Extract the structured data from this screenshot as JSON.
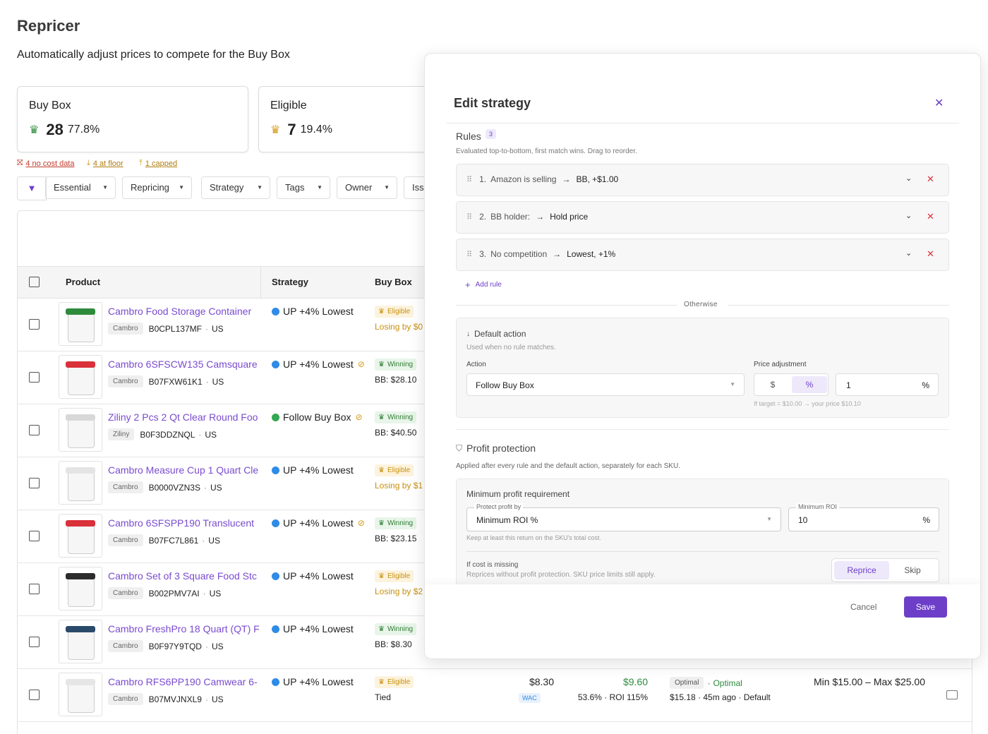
{
  "header": {
    "title": "Repricer",
    "subtitle": "Automatically adjust prices to compete for the Buy Box"
  },
  "stats": [
    {
      "label": "Buy Box",
      "count": "28",
      "pct": "77.8%"
    },
    {
      "label": "Eligible",
      "count": "7",
      "pct": "19.4%"
    }
  ],
  "alerts": [
    "4 no cost data",
    "4 at floor",
    "1 capped"
  ],
  "filters": [
    "Essential",
    "Repricing",
    "Strategy",
    "Tags",
    "Owner",
    "Iss"
  ],
  "table": {
    "columns": [
      "Product",
      "Strategy",
      "Buy Box"
    ],
    "rows": [
      {
        "name": "Cambro Food Storage Container",
        "brand": "Cambro",
        "asin": "B0CPL137MF",
        "market": "US",
        "strategy": "UP +4% Lowest",
        "strategy_color": "#2f8be6",
        "verified": false,
        "badge": "Eligible",
        "buybox": "Losing by $0"
      },
      {
        "name": "Cambro 6SFSCW135 Camsquare",
        "brand": "Cambro",
        "asin": "B07FXW61K1",
        "market": "US",
        "strategy": "UP +4% Lowest",
        "strategy_color": "#2f8be6",
        "verified": true,
        "badge": "Winning",
        "buybox": "BB: $28.10"
      },
      {
        "name": "Ziliny 2 Pcs 2 Qt Clear Round Foo",
        "brand": "Ziliny",
        "asin": "B0F3DDZNQL",
        "market": "US",
        "strategy": "Follow Buy Box",
        "strategy_color": "#34a853",
        "verified": true,
        "badge": "Winning",
        "buybox": "BB: $40.50"
      },
      {
        "name": "Cambro Measure Cup 1 Quart Cle",
        "brand": "Cambro",
        "asin": "B0000VZN3S",
        "market": "US",
        "strategy": "UP +4% Lowest",
        "strategy_color": "#2f8be6",
        "verified": false,
        "badge": "Eligible",
        "buybox": "Losing by $1"
      },
      {
        "name": "Cambro 6SFSPP190 Translucent",
        "brand": "Cambro",
        "asin": "B07FC7L861",
        "market": "US",
        "strategy": "UP +4% Lowest",
        "strategy_color": "#2f8be6",
        "verified": true,
        "badge": "Winning",
        "buybox": "BB: $23.15"
      },
      {
        "name": "Cambro Set of 3 Square Food Stc",
        "brand": "Cambro",
        "asin": "B002PMV7AI",
        "market": "US",
        "strategy": "UP +4% Lowest",
        "strategy_color": "#2f8be6",
        "verified": false,
        "badge": "Eligible",
        "buybox": "Losing by $2"
      },
      {
        "name": "Cambro FreshPro 18 Quart (QT) F",
        "brand": "Cambro",
        "asin": "B0F97Y9TQD",
        "market": "US",
        "strategy": "UP +4% Lowest",
        "strategy_color": "#2f8be6",
        "verified": false,
        "badge": "Winning",
        "buybox": "BB: $8.30"
      },
      {
        "name": "Cambro RFS6PP190 Camwear 6-",
        "brand": "Cambro",
        "asin": "B07MVJNXL9",
        "market": "US",
        "strategy": "UP +4% Lowest",
        "strategy_color": "#2f8be6",
        "verified": false,
        "badge": "Eligible",
        "buybox": "Tied",
        "price": "$8.30",
        "price_tag": "WAC",
        "profit": "$9.60",
        "profit_detail": "53.6% · ROI 115%",
        "status_chip": "Optimal",
        "status": "Optimal",
        "last": "$15.18 · 45m ago · Default",
        "limits": "Min $15.00 – Max $25.00"
      }
    ]
  },
  "modal": {
    "title": "Edit strategy",
    "rules_label": "Rules",
    "rules_count": "3",
    "rules_hint": "Evaluated top-to-bottom, first match wins. Drag to reorder.",
    "rules": [
      {
        "index": "1.",
        "condition": "Amazon is selling",
        "action": "BB, +$1.00"
      },
      {
        "index": "2.",
        "condition": "BB holder:",
        "action": "Hold price"
      },
      {
        "index": "3.",
        "condition": "No competition",
        "action": "Lowest, +1%"
      }
    ],
    "add_rule": "Add rule",
    "otherwise": "Otherwise",
    "default": {
      "title": "Default action",
      "hint": "Used when no rule matches.",
      "action_label": "Action",
      "action_value": "Follow Buy Box",
      "price_label": "Price adjustment",
      "units": [
        "$",
        "%"
      ],
      "amount": "1",
      "amount_unit": "%",
      "preview": "If target = $10.00 → your price $10.10"
    },
    "profit": {
      "title": "Profit protection",
      "hint": "Applied after every rule and the default action, separately for each SKU.",
      "section": "Minimum profit requirement",
      "protect_label": "Protect profit by",
      "protect_value": "Minimum ROI %",
      "roi_label": "Minimum ROI",
      "roi_value": "10",
      "roi_unit": "%",
      "roi_hint": "Keep at least this return on the SKU's total cost.",
      "missing_title": "If cost is missing",
      "missing_hint": "Reprices without profit protection. SKU price limits still apply.",
      "options": [
        "Reprice",
        "Skip"
      ]
    },
    "cancel": "Cancel",
    "save": "Save"
  }
}
